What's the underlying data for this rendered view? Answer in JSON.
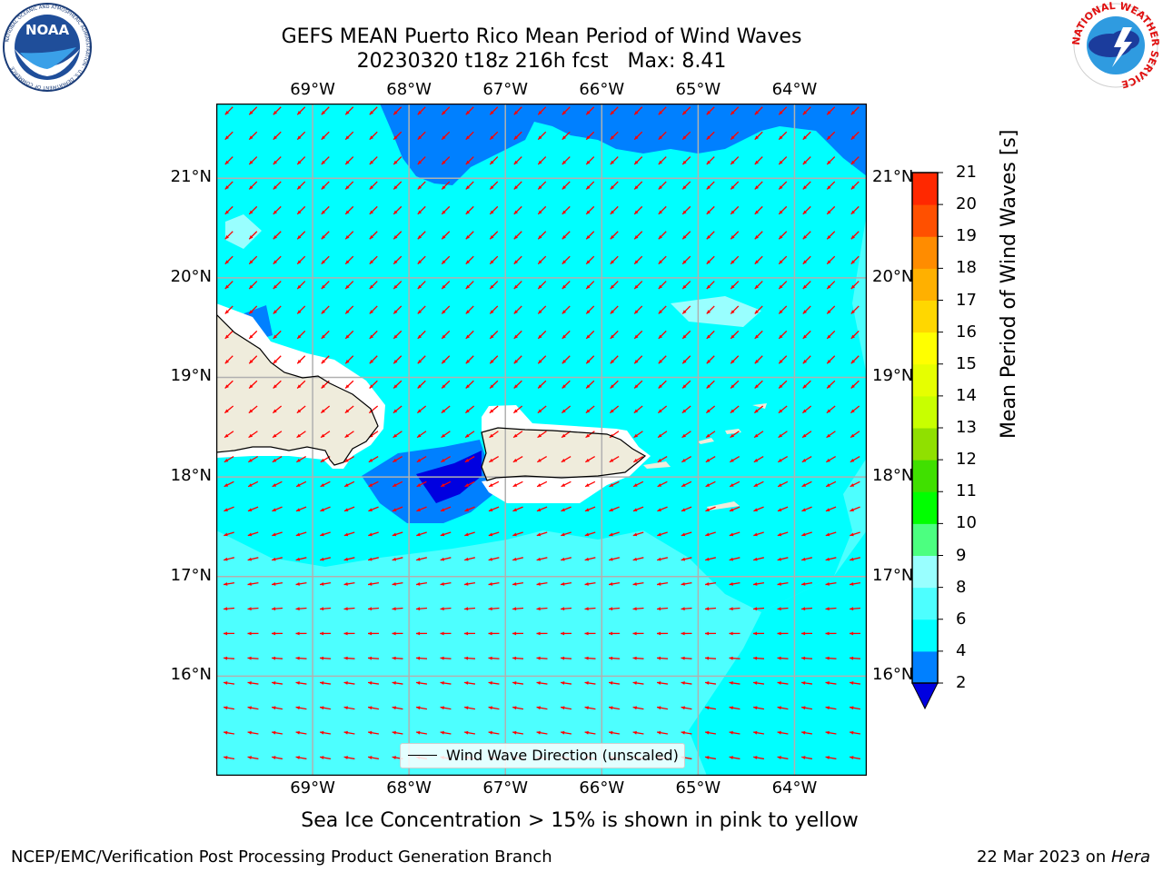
{
  "title": {
    "line1": "GEFS MEAN Puerto Rico Mean Period of Wind Waves",
    "line2": "20230320 t18z 216h fcst   Max: 8.41"
  },
  "map": {
    "lon_labels": [
      "69°W",
      "68°W",
      "67°W",
      "66°W",
      "65°W",
      "64°W"
    ],
    "lat_labels": [
      "21°N",
      "20°N",
      "19°N",
      "18°N",
      "17°N",
      "16°N"
    ],
    "lon_range": [
      -70.0,
      -63.25
    ],
    "lat_range": [
      15.0,
      21.75
    ],
    "legend": "Wind Wave Direction (unscaled)",
    "arrow_color": "#ff0000",
    "land_color": "#efecdc",
    "colors": {
      "lt2": "#0000e0",
      "c2_4": "#0080ff",
      "c4_6": "#00ffff",
      "c6_8": "#4dffff",
      "c8_9": "#99ffff"
    }
  },
  "colorbar": {
    "label": "Mean Period of Wind Waves [s]",
    "ticks": [
      "2",
      "4",
      "6",
      "8",
      "9",
      "10",
      "11",
      "12",
      "13",
      "14",
      "15",
      "16",
      "17",
      "18",
      "19",
      "20",
      "21"
    ],
    "colors": [
      "#0080ff",
      "#00ffff",
      "#4dffff",
      "#99ffff",
      "#4cff80",
      "#00ff00",
      "#40e000",
      "#90e000",
      "#c8ff00",
      "#e6ff00",
      "#ffff00",
      "#ffd700",
      "#ffb000",
      "#ff8c00",
      "#ff5000",
      "#ff2800"
    ],
    "under_color": "#0000e0"
  },
  "note": "Sea Ice Concentration > 15% is shown in pink to yellow",
  "footer": {
    "left": "NCEP/EMC/Verification Post Processing Product Generation Branch",
    "right_prefix": "22 Mar 2023 on ",
    "right_host": "Hera"
  },
  "logos": {
    "noaa": "NOAA",
    "noaa_ring": "NATIONAL OCEANIC AND ATMOSPHERIC ADMINISTRATION · U.S. DEPARTMENT OF COMMERCE",
    "nws_ring": "NATIONAL WEATHER SERVICE"
  }
}
